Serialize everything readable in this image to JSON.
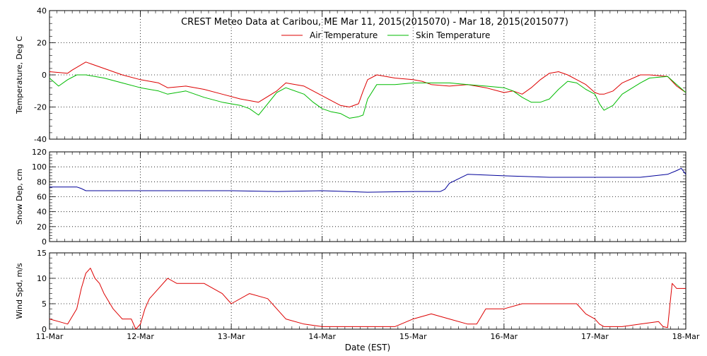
{
  "chart_data": {
    "type": "line",
    "title": "CREST Meteo Data at Caribou, ME   Mar 11, 2015(2015070) - Mar 18, 2015(2015077)",
    "xlabel": "Date (EST)",
    "x_ticks": [
      "11-Mar",
      "12-Mar",
      "13-Mar",
      "14-Mar",
      "15-Mar",
      "16-Mar",
      "17-Mar",
      "18-Mar"
    ],
    "x_range_days": [
      0,
      7
    ],
    "grid": true,
    "legend": {
      "placement": "top-center",
      "entries": [
        "Air Temperature",
        "Skin Temperature"
      ]
    },
    "panels": [
      {
        "ylabel": "Temperature, Deg C",
        "ylim": [
          -40,
          40
        ],
        "yticks": [
          "-40",
          "-20",
          "0",
          "20",
          "40"
        ],
        "ytick_values": [
          -40,
          -20,
          0,
          20,
          40
        ],
        "series": [
          {
            "name": "Air Temperature",
            "color": "#dd0000",
            "x": [
              0,
              0.2,
              0.25,
              0.4,
              0.5,
              0.6,
              0.8,
              1.0,
              1.2,
              1.3,
              1.5,
              1.7,
              1.9,
              2.1,
              2.3,
              2.5,
              2.6,
              2.8,
              3.0,
              3.1,
              3.2,
              3.3,
              3.4,
              3.45,
              3.5,
              3.6,
              3.8,
              4.0,
              4.1,
              4.2,
              4.4,
              4.6,
              4.8,
              5.0,
              5.1,
              5.2,
              5.3,
              5.4,
              5.5,
              5.6,
              5.7,
              5.8,
              5.9,
              6.0,
              6.05,
              6.1,
              6.2,
              6.3,
              6.5,
              6.6,
              6.8,
              6.9,
              7.0
            ],
            "y": [
              2,
              1,
              3,
              8,
              6,
              4,
              0,
              -3,
              -5,
              -8,
              -7,
              -9,
              -12,
              -15,
              -17,
              -10,
              -5,
              -7,
              -13,
              -16,
              -19,
              -20,
              -18,
              -10,
              -3,
              0,
              -2,
              -3,
              -4,
              -6,
              -7,
              -6,
              -8,
              -11,
              -10,
              -12,
              -8,
              -3,
              1,
              2,
              0,
              -3,
              -6,
              -11,
              -12,
              -12,
              -10,
              -5,
              0,
              0,
              -1,
              -7,
              -11
            ]
          },
          {
            "name": "Skin Temperature",
            "color": "#00bb00",
            "x": [
              0,
              0.1,
              0.2,
              0.3,
              0.4,
              0.6,
              0.8,
              1.0,
              1.2,
              1.3,
              1.5,
              1.7,
              1.9,
              2.1,
              2.2,
              2.3,
              2.4,
              2.5,
              2.6,
              2.8,
              2.9,
              3.0,
              3.1,
              3.2,
              3.3,
              3.4,
              3.45,
              3.5,
              3.6,
              3.8,
              4.0,
              4.2,
              4.4,
              4.6,
              4.8,
              5.0,
              5.1,
              5.2,
              5.3,
              5.4,
              5.5,
              5.6,
              5.7,
              5.8,
              5.9,
              6.0,
              6.05,
              6.1,
              6.2,
              6.3,
              6.5,
              6.6,
              6.8,
              6.9,
              7.0
            ],
            "y": [
              -2,
              -7,
              -3,
              0,
              0,
              -2,
              -5,
              -8,
              -10,
              -12,
              -10,
              -14,
              -17,
              -19,
              -21,
              -25,
              -18,
              -11,
              -8,
              -12,
              -17,
              -21,
              -23,
              -24,
              -27,
              -26,
              -25,
              -15,
              -6,
              -6,
              -5,
              -5,
              -5,
              -6,
              -7,
              -8,
              -10,
              -14,
              -17,
              -17,
              -15,
              -9,
              -4,
              -5,
              -9,
              -12,
              -18,
              -22,
              -19,
              -12,
              -5,
              -2,
              -1,
              -6,
              -11
            ]
          }
        ]
      },
      {
        "ylabel": "Snow Dep, cm",
        "ylim": [
          0,
          120
        ],
        "yticks": [
          "0",
          "20",
          "40",
          "60",
          "80",
          "100",
          "120"
        ],
        "ytick_values": [
          0,
          20,
          40,
          60,
          80,
          100,
          120
        ],
        "series": [
          {
            "name": "",
            "color": "#000099",
            "x": [
              0,
              0.3,
              0.35,
              0.4,
              0.5,
              1.0,
              2.0,
              2.5,
              3.0,
              3.5,
              4.0,
              4.3,
              4.35,
              4.4,
              4.6,
              5.0,
              5.5,
              6.0,
              6.5,
              6.8,
              6.9,
              6.95,
              7.0
            ],
            "y": [
              73,
              73,
              71,
              68,
              68,
              68,
              68,
              67,
              68,
              66,
              67,
              67,
              70,
              78,
              90,
              88,
              86,
              86,
              86,
              90,
              95,
              98,
              90
            ]
          }
        ]
      },
      {
        "ylabel": "Wind Spd, m/s",
        "ylim": [
          0,
          15
        ],
        "yticks": [
          "0",
          "5",
          "10",
          "15"
        ],
        "ytick_values": [
          0,
          5,
          10,
          15
        ],
        "series": [
          {
            "name": "",
            "color": "#dd0000",
            "x": [
              0,
              0.1,
              0.2,
              0.3,
              0.35,
              0.4,
              0.45,
              0.5,
              0.55,
              0.6,
              0.7,
              0.8,
              0.9,
              0.95,
              1.0,
              1.05,
              1.1,
              1.2,
              1.3,
              1.4,
              1.5,
              1.7,
              1.9,
              2.0,
              2.2,
              2.4,
              2.6,
              2.8,
              3.0,
              3.2,
              3.4,
              3.6,
              3.8,
              4.0,
              4.2,
              4.4,
              4.6,
              4.7,
              4.8,
              4.9,
              5.0,
              5.2,
              5.4,
              5.6,
              5.8,
              5.9,
              6.0,
              6.05,
              6.1,
              6.3,
              6.5,
              6.7,
              6.75,
              6.8,
              6.85,
              6.9,
              7.0
            ],
            "y": [
              2,
              1.5,
              1,
              4,
              8,
              11,
              12,
              10,
              9,
              7,
              4,
              2,
              2,
              0,
              1,
              4,
              6,
              8,
              10,
              9,
              9,
              9,
              7,
              5,
              7,
              6,
              2,
              1,
              0.5,
              0.5,
              0.5,
              0.5,
              0.5,
              2,
              3,
              2,
              1,
              1,
              4,
              4,
              4,
              5,
              5,
              5,
              5,
              3,
              2,
              1,
              0.5,
              0.5,
              1,
              1.5,
              0.5,
              0.3,
              9,
              8,
              8
            ]
          }
        ]
      }
    ]
  }
}
